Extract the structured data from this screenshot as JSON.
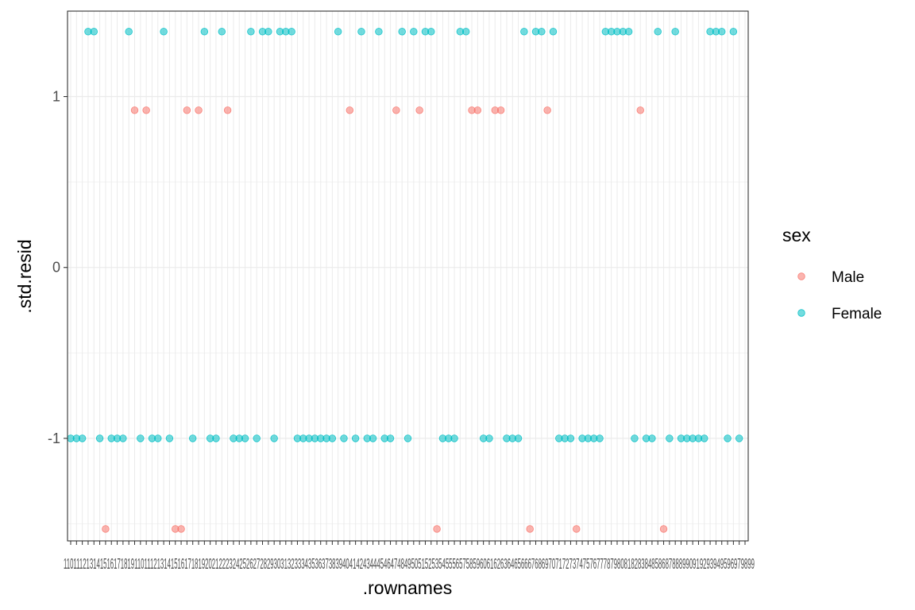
{
  "chart_data": {
    "type": "scatter",
    "xlabel": ".rownames",
    "ylabel": ".std.resid",
    "ylim": [
      -1.6,
      1.5
    ],
    "y_ticks": [
      1,
      0,
      -1
    ],
    "x_tick_labels_text": "1101112131415161718191101112131415161718192021222324252627282930313233343536373839404142434445464748495051525354555657585960616263646566676869707172737475767778798081828384858687888990919293949596979899",
    "grid": true,
    "legend": {
      "title": "sex",
      "position": "right",
      "entries": [
        {
          "label": "Male",
          "color": "#F8766D"
        },
        {
          "label": "Female",
          "color": "#00BFC4"
        }
      ]
    },
    "n_categories": 117,
    "series": [
      {
        "name": "Male",
        "color": "#F8766D",
        "points": [
          [
            7,
            -1.53
          ],
          [
            12,
            0.92
          ],
          [
            14,
            0.92
          ],
          [
            19,
            -1.53
          ],
          [
            20,
            -1.53
          ],
          [
            21,
            0.92
          ],
          [
            23,
            0.92
          ],
          [
            28,
            0.92
          ],
          [
            49,
            0.92
          ],
          [
            57,
            0.92
          ],
          [
            61,
            0.92
          ],
          [
            64,
            -1.53
          ],
          [
            70,
            0.92
          ],
          [
            71,
            0.92
          ],
          [
            74,
            0.92
          ],
          [
            75,
            0.92
          ],
          [
            80,
            -1.53
          ],
          [
            83,
            0.92
          ],
          [
            88,
            -1.53
          ],
          [
            99,
            0.92
          ],
          [
            103,
            -1.53
          ]
        ]
      },
      {
        "name": "Female",
        "color": "#00BFC4",
        "points": [
          [
            1,
            -1.0
          ],
          [
            2,
            -1.0
          ],
          [
            3,
            -1.0
          ],
          [
            4,
            1.38
          ],
          [
            5,
            1.38
          ],
          [
            6,
            -1.0
          ],
          [
            8,
            -1.0
          ],
          [
            9,
            -1.0
          ],
          [
            10,
            -1.0
          ],
          [
            11,
            1.38
          ],
          [
            13,
            -1.0
          ],
          [
            15,
            -1.0
          ],
          [
            16,
            -1.0
          ],
          [
            17,
            1.38
          ],
          [
            18,
            -1.0
          ],
          [
            22,
            -1.0
          ],
          [
            24,
            1.38
          ],
          [
            25,
            -1.0
          ],
          [
            26,
            -1.0
          ],
          [
            27,
            1.38
          ],
          [
            29,
            -1.0
          ],
          [
            30,
            -1.0
          ],
          [
            31,
            -1.0
          ],
          [
            32,
            1.38
          ],
          [
            33,
            -1.0
          ],
          [
            34,
            1.38
          ],
          [
            35,
            1.38
          ],
          [
            36,
            -1.0
          ],
          [
            37,
            1.38
          ],
          [
            38,
            1.38
          ],
          [
            39,
            1.38
          ],
          [
            40,
            -1.0
          ],
          [
            41,
            -1.0
          ],
          [
            42,
            -1.0
          ],
          [
            43,
            -1.0
          ],
          [
            44,
            -1.0
          ],
          [
            45,
            -1.0
          ],
          [
            46,
            -1.0
          ],
          [
            47,
            1.38
          ],
          [
            48,
            -1.0
          ],
          [
            50,
            -1.0
          ],
          [
            51,
            1.38
          ],
          [
            52,
            -1.0
          ],
          [
            53,
            -1.0
          ],
          [
            54,
            1.38
          ],
          [
            55,
            -1.0
          ],
          [
            56,
            -1.0
          ],
          [
            58,
            1.38
          ],
          [
            59,
            -1.0
          ],
          [
            60,
            1.38
          ],
          [
            62,
            1.38
          ],
          [
            63,
            1.38
          ],
          [
            65,
            -1.0
          ],
          [
            66,
            -1.0
          ],
          [
            67,
            -1.0
          ],
          [
            68,
            1.38
          ],
          [
            69,
            1.38
          ],
          [
            72,
            -1.0
          ],
          [
            73,
            -1.0
          ],
          [
            76,
            -1.0
          ],
          [
            77,
            -1.0
          ],
          [
            78,
            -1.0
          ],
          [
            79,
            1.38
          ],
          [
            81,
            1.38
          ],
          [
            82,
            1.38
          ],
          [
            84,
            1.38
          ],
          [
            85,
            -1.0
          ],
          [
            86,
            -1.0
          ],
          [
            87,
            -1.0
          ],
          [
            89,
            -1.0
          ],
          [
            90,
            -1.0
          ],
          [
            91,
            -1.0
          ],
          [
            92,
            -1.0
          ],
          [
            93,
            1.38
          ],
          [
            94,
            1.38
          ],
          [
            95,
            1.38
          ],
          [
            96,
            1.38
          ],
          [
            97,
            1.38
          ],
          [
            98,
            -1.0
          ],
          [
            100,
            -1.0
          ],
          [
            101,
            -1.0
          ],
          [
            102,
            1.38
          ],
          [
            104,
            -1.0
          ],
          [
            105,
            1.38
          ],
          [
            106,
            -1.0
          ],
          [
            107,
            -1.0
          ],
          [
            108,
            -1.0
          ],
          [
            109,
            -1.0
          ],
          [
            110,
            -1.0
          ],
          [
            111,
            1.38
          ],
          [
            112,
            1.38
          ],
          [
            113,
            1.38
          ],
          [
            114,
            -1.0
          ],
          [
            115,
            1.38
          ],
          [
            116,
            -1.0
          ]
        ]
      }
    ]
  }
}
